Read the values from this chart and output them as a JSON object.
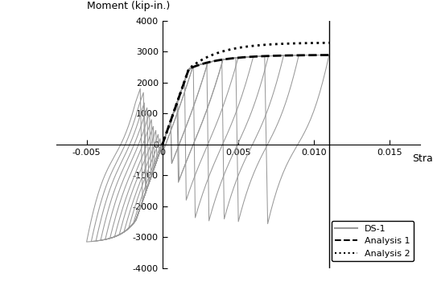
{
  "ylabel": "Moment (kip-in.)",
  "xlabel": "Strain",
  "xlim": [
    -0.007,
    0.017
  ],
  "ylim": [
    -4000,
    4000
  ],
  "xticks": [
    -0.005,
    0.0,
    0.005,
    0.01,
    0.015
  ],
  "yticks": [
    -4000,
    -3000,
    -2000,
    -1000,
    0,
    1000,
    2000,
    3000,
    4000
  ],
  "analysis1_color": "#000000",
  "analysis2_color": "#000000",
  "ds1_color": "#999999",
  "peak_strain": 0.011,
  "analysis1_yield_strain": 0.00175,
  "analysis1_yield_moment": 2450,
  "analysis1_peak_moment": 2900,
  "analysis2_yield_strain": 0.00175,
  "analysis2_yield_moment": 2450,
  "analysis2_peak_moment": 3300,
  "elastic_stiffness": 1400000,
  "cycle_amplitudes": [
    0.0015,
    0.0015,
    0.002,
    0.002,
    0.003,
    0.003,
    0.004,
    0.004,
    0.005,
    0.006,
    0.007,
    0.008,
    0.009,
    0.011
  ],
  "neg_strain_limit": -0.005
}
